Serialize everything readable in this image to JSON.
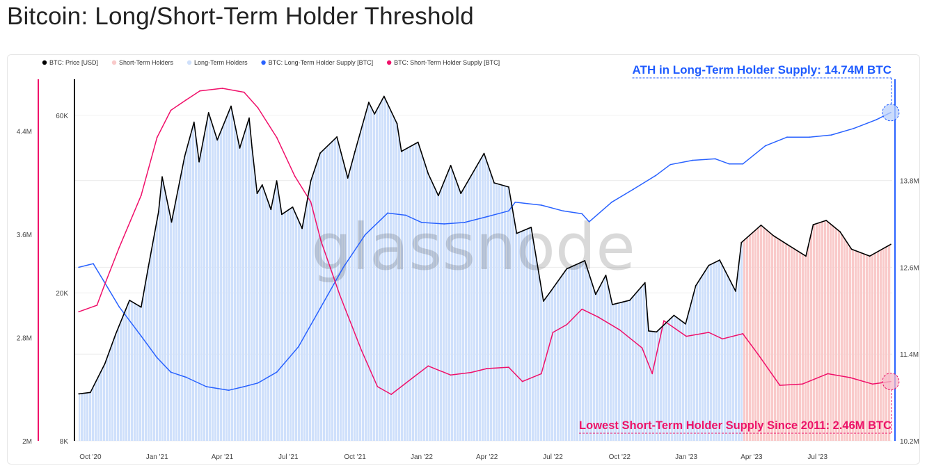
{
  "title": "Bitcoin: Long/Short-Term Holder Threshold",
  "watermark": "glassnode",
  "colors": {
    "price": "#000000",
    "lth_supply": "#2962ff",
    "sth_supply": "#f0106a",
    "lth_fill": "#cfe0fb",
    "sth_fill": "#f9caca",
    "ann_blue": "#1e5bff",
    "ann_red": "#ec1368"
  },
  "chart_data": {
    "type": "line",
    "title": "Bitcoin: Long/Short-Term Holder Threshold",
    "legend": [
      {
        "label": "BTC: Price [USD]",
        "color": "#000000",
        "kind": "dot"
      },
      {
        "label": "Short-Term Holders",
        "color": "#f9caca",
        "kind": "dot"
      },
      {
        "label": "Long-Term Holders",
        "color": "#cfe0fb",
        "kind": "dot"
      },
      {
        "label": "BTC: Long-Term Holder Supply [BTC]",
        "color": "#2962ff",
        "kind": "dot"
      },
      {
        "label": "BTC: Short-Term Holder Supply [BTC]",
        "color": "#f0106a",
        "kind": "dot"
      }
    ],
    "legend_position": "top-left",
    "x_axis": {
      "min": "2020-09-10",
      "max": "2023-10-12",
      "ticks": [
        {
          "date": "2020-10-01",
          "label": "Oct '20"
        },
        {
          "date": "2021-01-01",
          "label": "Jan '21"
        },
        {
          "date": "2021-04-01",
          "label": "Apr '21"
        },
        {
          "date": "2021-07-01",
          "label": "Jul '21"
        },
        {
          "date": "2021-10-01",
          "label": "Oct '21"
        },
        {
          "date": "2022-01-01",
          "label": "Jan '22"
        },
        {
          "date": "2022-04-01",
          "label": "Apr '22"
        },
        {
          "date": "2022-07-01",
          "label": "Jul '22"
        },
        {
          "date": "2022-10-01",
          "label": "Oct '22"
        },
        {
          "date": "2023-01-01",
          "label": "Jan '23"
        },
        {
          "date": "2023-04-01",
          "label": "Apr '23"
        },
        {
          "date": "2023-07-01",
          "label": "Jul '23"
        }
      ]
    },
    "axes": {
      "sth_supply": {
        "side": "far-left",
        "scale": "linear",
        "min": 2000000,
        "max": 4800000,
        "ticks": [
          "2M",
          "2.8M",
          "3.6M",
          "4.4M"
        ],
        "tick_values": [
          2000000,
          2800000,
          3600000,
          4400000
        ]
      },
      "price": {
        "side": "left",
        "scale": "log",
        "min": 8000,
        "max": 75000,
        "ticks": [
          "8K",
          "20K",
          "60K"
        ],
        "tick_values": [
          8000,
          20000,
          60000
        ]
      },
      "lth_supply": {
        "side": "right",
        "scale": "linear",
        "min": 10200000,
        "max": 15200000,
        "ticks": [
          "10.2M",
          "11.4M",
          "12.6M",
          "13.8M"
        ],
        "tick_values": [
          10200000,
          11400000,
          12600000,
          13800000
        ]
      }
    },
    "holder_regime": [
      {
        "from": "2020-09-15",
        "to": "2023-03-20",
        "regime": "Long-Term Holders"
      },
      {
        "from": "2023-03-20",
        "to": "2023-10-10",
        "regime": "Short-Term Holders"
      }
    ],
    "series": [
      {
        "name": "BTC: Price [USD]",
        "axis": "price",
        "color": "#000000",
        "points": [
          [
            "2020-09-15",
            10700
          ],
          [
            "2020-10-01",
            10800
          ],
          [
            "2020-10-21",
            12900
          ],
          [
            "2020-11-05",
            15500
          ],
          [
            "2020-11-24",
            19100
          ],
          [
            "2020-12-10",
            18300
          ],
          [
            "2020-12-20",
            23500
          ],
          [
            "2021-01-03",
            33000
          ],
          [
            "2021-01-08",
            41000
          ],
          [
            "2021-01-21",
            31000
          ],
          [
            "2021-02-08",
            46500
          ],
          [
            "2021-02-21",
            57500
          ],
          [
            "2021-02-28",
            45000
          ],
          [
            "2021-03-13",
            61000
          ],
          [
            "2021-03-25",
            51500
          ],
          [
            "2021-04-13",
            63500
          ],
          [
            "2021-04-25",
            49000
          ],
          [
            "2021-05-08",
            59000
          ],
          [
            "2021-05-12",
            49000
          ],
          [
            "2021-05-19",
            37000
          ],
          [
            "2021-05-26",
            39000
          ],
          [
            "2021-06-07",
            33500
          ],
          [
            "2021-06-15",
            40000
          ],
          [
            "2021-06-22",
            32500
          ],
          [
            "2021-07-07",
            34000
          ],
          [
            "2021-07-20",
            29800
          ],
          [
            "2021-08-01",
            40000
          ],
          [
            "2021-08-14",
            47500
          ],
          [
            "2021-09-06",
            52500
          ],
          [
            "2021-09-21",
            40700
          ],
          [
            "2021-10-01",
            48000
          ],
          [
            "2021-10-20",
            65000
          ],
          [
            "2021-10-28",
            60500
          ],
          [
            "2021-11-10",
            67500
          ],
          [
            "2021-11-28",
            57000
          ],
          [
            "2021-12-04",
            48000
          ],
          [
            "2021-12-27",
            50800
          ],
          [
            "2022-01-10",
            41800
          ],
          [
            "2022-01-24",
            36500
          ],
          [
            "2022-02-10",
            44000
          ],
          [
            "2022-02-24",
            37000
          ],
          [
            "2022-03-28",
            47400
          ],
          [
            "2022-04-11",
            39500
          ],
          [
            "2022-05-01",
            38500
          ],
          [
            "2022-05-12",
            28900
          ],
          [
            "2022-06-01",
            30000
          ],
          [
            "2022-06-18",
            19000
          ],
          [
            "2022-06-28",
            20200
          ],
          [
            "2022-07-20",
            23200
          ],
          [
            "2022-08-14",
            24400
          ],
          [
            "2022-08-29",
            19800
          ],
          [
            "2022-09-12",
            22300
          ],
          [
            "2022-09-21",
            18600
          ],
          [
            "2022-10-15",
            19100
          ],
          [
            "2022-11-05",
            21300
          ],
          [
            "2022-11-10",
            15800
          ],
          [
            "2022-11-21",
            15700
          ],
          [
            "2022-12-15",
            17400
          ],
          [
            "2022-12-31",
            16500
          ],
          [
            "2023-01-14",
            20900
          ],
          [
            "2023-02-01",
            23700
          ],
          [
            "2023-02-16",
            24500
          ],
          [
            "2023-03-10",
            20200
          ],
          [
            "2023-03-18",
            27300
          ],
          [
            "2023-04-14",
            30400
          ],
          [
            "2023-05-01",
            28500
          ],
          [
            "2023-05-20",
            27000
          ],
          [
            "2023-06-15",
            25100
          ],
          [
            "2023-06-25",
            30500
          ],
          [
            "2023-07-13",
            31300
          ],
          [
            "2023-08-01",
            29200
          ],
          [
            "2023-08-17",
            26200
          ],
          [
            "2023-09-11",
            25100
          ],
          [
            "2023-10-10",
            27000
          ]
        ]
      },
      {
        "name": "BTC: Long-Term Holder Supply [BTC]",
        "axis": "lth_supply",
        "color": "#2962ff",
        "points": [
          [
            "2020-09-15",
            12600000
          ],
          [
            "2020-10-05",
            12650000
          ],
          [
            "2020-10-20",
            12400000
          ],
          [
            "2020-11-10",
            12050000
          ],
          [
            "2020-12-10",
            11650000
          ],
          [
            "2021-01-01",
            11350000
          ],
          [
            "2021-01-20",
            11150000
          ],
          [
            "2021-02-10",
            11080000
          ],
          [
            "2021-03-10",
            10950000
          ],
          [
            "2021-04-10",
            10900000
          ],
          [
            "2021-05-01",
            10950000
          ],
          [
            "2021-05-20",
            11000000
          ],
          [
            "2021-06-15",
            11150000
          ],
          [
            "2021-07-15",
            11500000
          ],
          [
            "2021-08-15",
            12050000
          ],
          [
            "2021-09-15",
            12600000
          ],
          [
            "2021-10-15",
            13050000
          ],
          [
            "2021-11-15",
            13350000
          ],
          [
            "2021-12-10",
            13320000
          ],
          [
            "2022-01-01",
            13220000
          ],
          [
            "2022-02-01",
            13200000
          ],
          [
            "2022-03-01",
            13220000
          ],
          [
            "2022-04-01",
            13300000
          ],
          [
            "2022-05-01",
            13380000
          ],
          [
            "2022-05-10",
            13500000
          ],
          [
            "2022-06-15",
            13460000
          ],
          [
            "2022-07-15",
            13380000
          ],
          [
            "2022-08-10",
            13340000
          ],
          [
            "2022-08-20",
            13230000
          ],
          [
            "2022-09-20",
            13500000
          ],
          [
            "2022-10-20",
            13680000
          ],
          [
            "2022-11-20",
            13870000
          ],
          [
            "2022-12-10",
            14020000
          ],
          [
            "2023-01-10",
            14080000
          ],
          [
            "2023-02-10",
            14100000
          ],
          [
            "2023-03-01",
            14030000
          ],
          [
            "2023-03-20",
            14030000
          ],
          [
            "2023-04-20",
            14280000
          ],
          [
            "2023-05-20",
            14400000
          ],
          [
            "2023-06-20",
            14400000
          ],
          [
            "2023-07-20",
            14430000
          ],
          [
            "2023-08-20",
            14520000
          ],
          [
            "2023-09-20",
            14640000
          ],
          [
            "2023-10-10",
            14740000
          ]
        ]
      },
      {
        "name": "BTC: Short-Term Holder Supply [BTC]",
        "axis": "sth_supply",
        "color": "#f0106a",
        "points": [
          [
            "2020-09-15",
            3000000
          ],
          [
            "2020-10-10",
            3050000
          ],
          [
            "2020-10-20",
            3200000
          ],
          [
            "2020-11-10",
            3500000
          ],
          [
            "2020-12-10",
            3900000
          ],
          [
            "2021-01-01",
            4350000
          ],
          [
            "2021-01-20",
            4560000
          ],
          [
            "2021-02-10",
            4640000
          ],
          [
            "2021-03-01",
            4710000
          ],
          [
            "2021-04-01",
            4730000
          ],
          [
            "2021-05-01",
            4700000
          ],
          [
            "2021-05-20",
            4580000
          ],
          [
            "2021-06-15",
            4350000
          ],
          [
            "2021-07-10",
            4050000
          ],
          [
            "2021-08-01",
            3850000
          ],
          [
            "2021-08-15",
            3550000
          ],
          [
            "2021-09-10",
            3130000
          ],
          [
            "2021-10-10",
            2700000
          ],
          [
            "2021-11-01",
            2420000
          ],
          [
            "2021-11-20",
            2360000
          ],
          [
            "2021-12-20",
            2490000
          ],
          [
            "2022-01-10",
            2580000
          ],
          [
            "2022-02-10",
            2510000
          ],
          [
            "2022-03-10",
            2530000
          ],
          [
            "2022-04-01",
            2560000
          ],
          [
            "2022-05-01",
            2570000
          ],
          [
            "2022-05-20",
            2460000
          ],
          [
            "2022-06-15",
            2520000
          ],
          [
            "2022-07-01",
            2840000
          ],
          [
            "2022-07-20",
            2900000
          ],
          [
            "2022-08-10",
            3020000
          ],
          [
            "2022-09-01",
            2960000
          ],
          [
            "2022-10-01",
            2860000
          ],
          [
            "2022-11-01",
            2720000
          ],
          [
            "2022-11-15",
            2520000
          ],
          [
            "2022-12-01",
            2930000
          ],
          [
            "2023-01-01",
            2810000
          ],
          [
            "2023-02-01",
            2840000
          ],
          [
            "2023-02-20",
            2790000
          ],
          [
            "2023-03-20",
            2830000
          ],
          [
            "2023-04-10",
            2670000
          ],
          [
            "2023-05-10",
            2430000
          ],
          [
            "2023-06-10",
            2440000
          ],
          [
            "2023-07-15",
            2520000
          ],
          [
            "2023-08-15",
            2490000
          ],
          [
            "2023-09-15",
            2440000
          ],
          [
            "2023-10-10",
            2460000
          ]
        ]
      }
    ],
    "annotations": [
      {
        "text": "ATH in Long-Term Holder Supply: 14.74M BTC",
        "color": "#1e5bff",
        "date": "2023-10-10",
        "series": "BTC: Long-Term Holder Supply [BTC]",
        "value": 14740000
      },
      {
        "text": "Lowest Short-Term Holder Supply Since 2011: 2.46M BTC",
        "color": "#ec1368",
        "date": "2023-10-10",
        "series": "BTC: Short-Term Holder Supply [BTC]",
        "value": 2460000
      }
    ]
  }
}
